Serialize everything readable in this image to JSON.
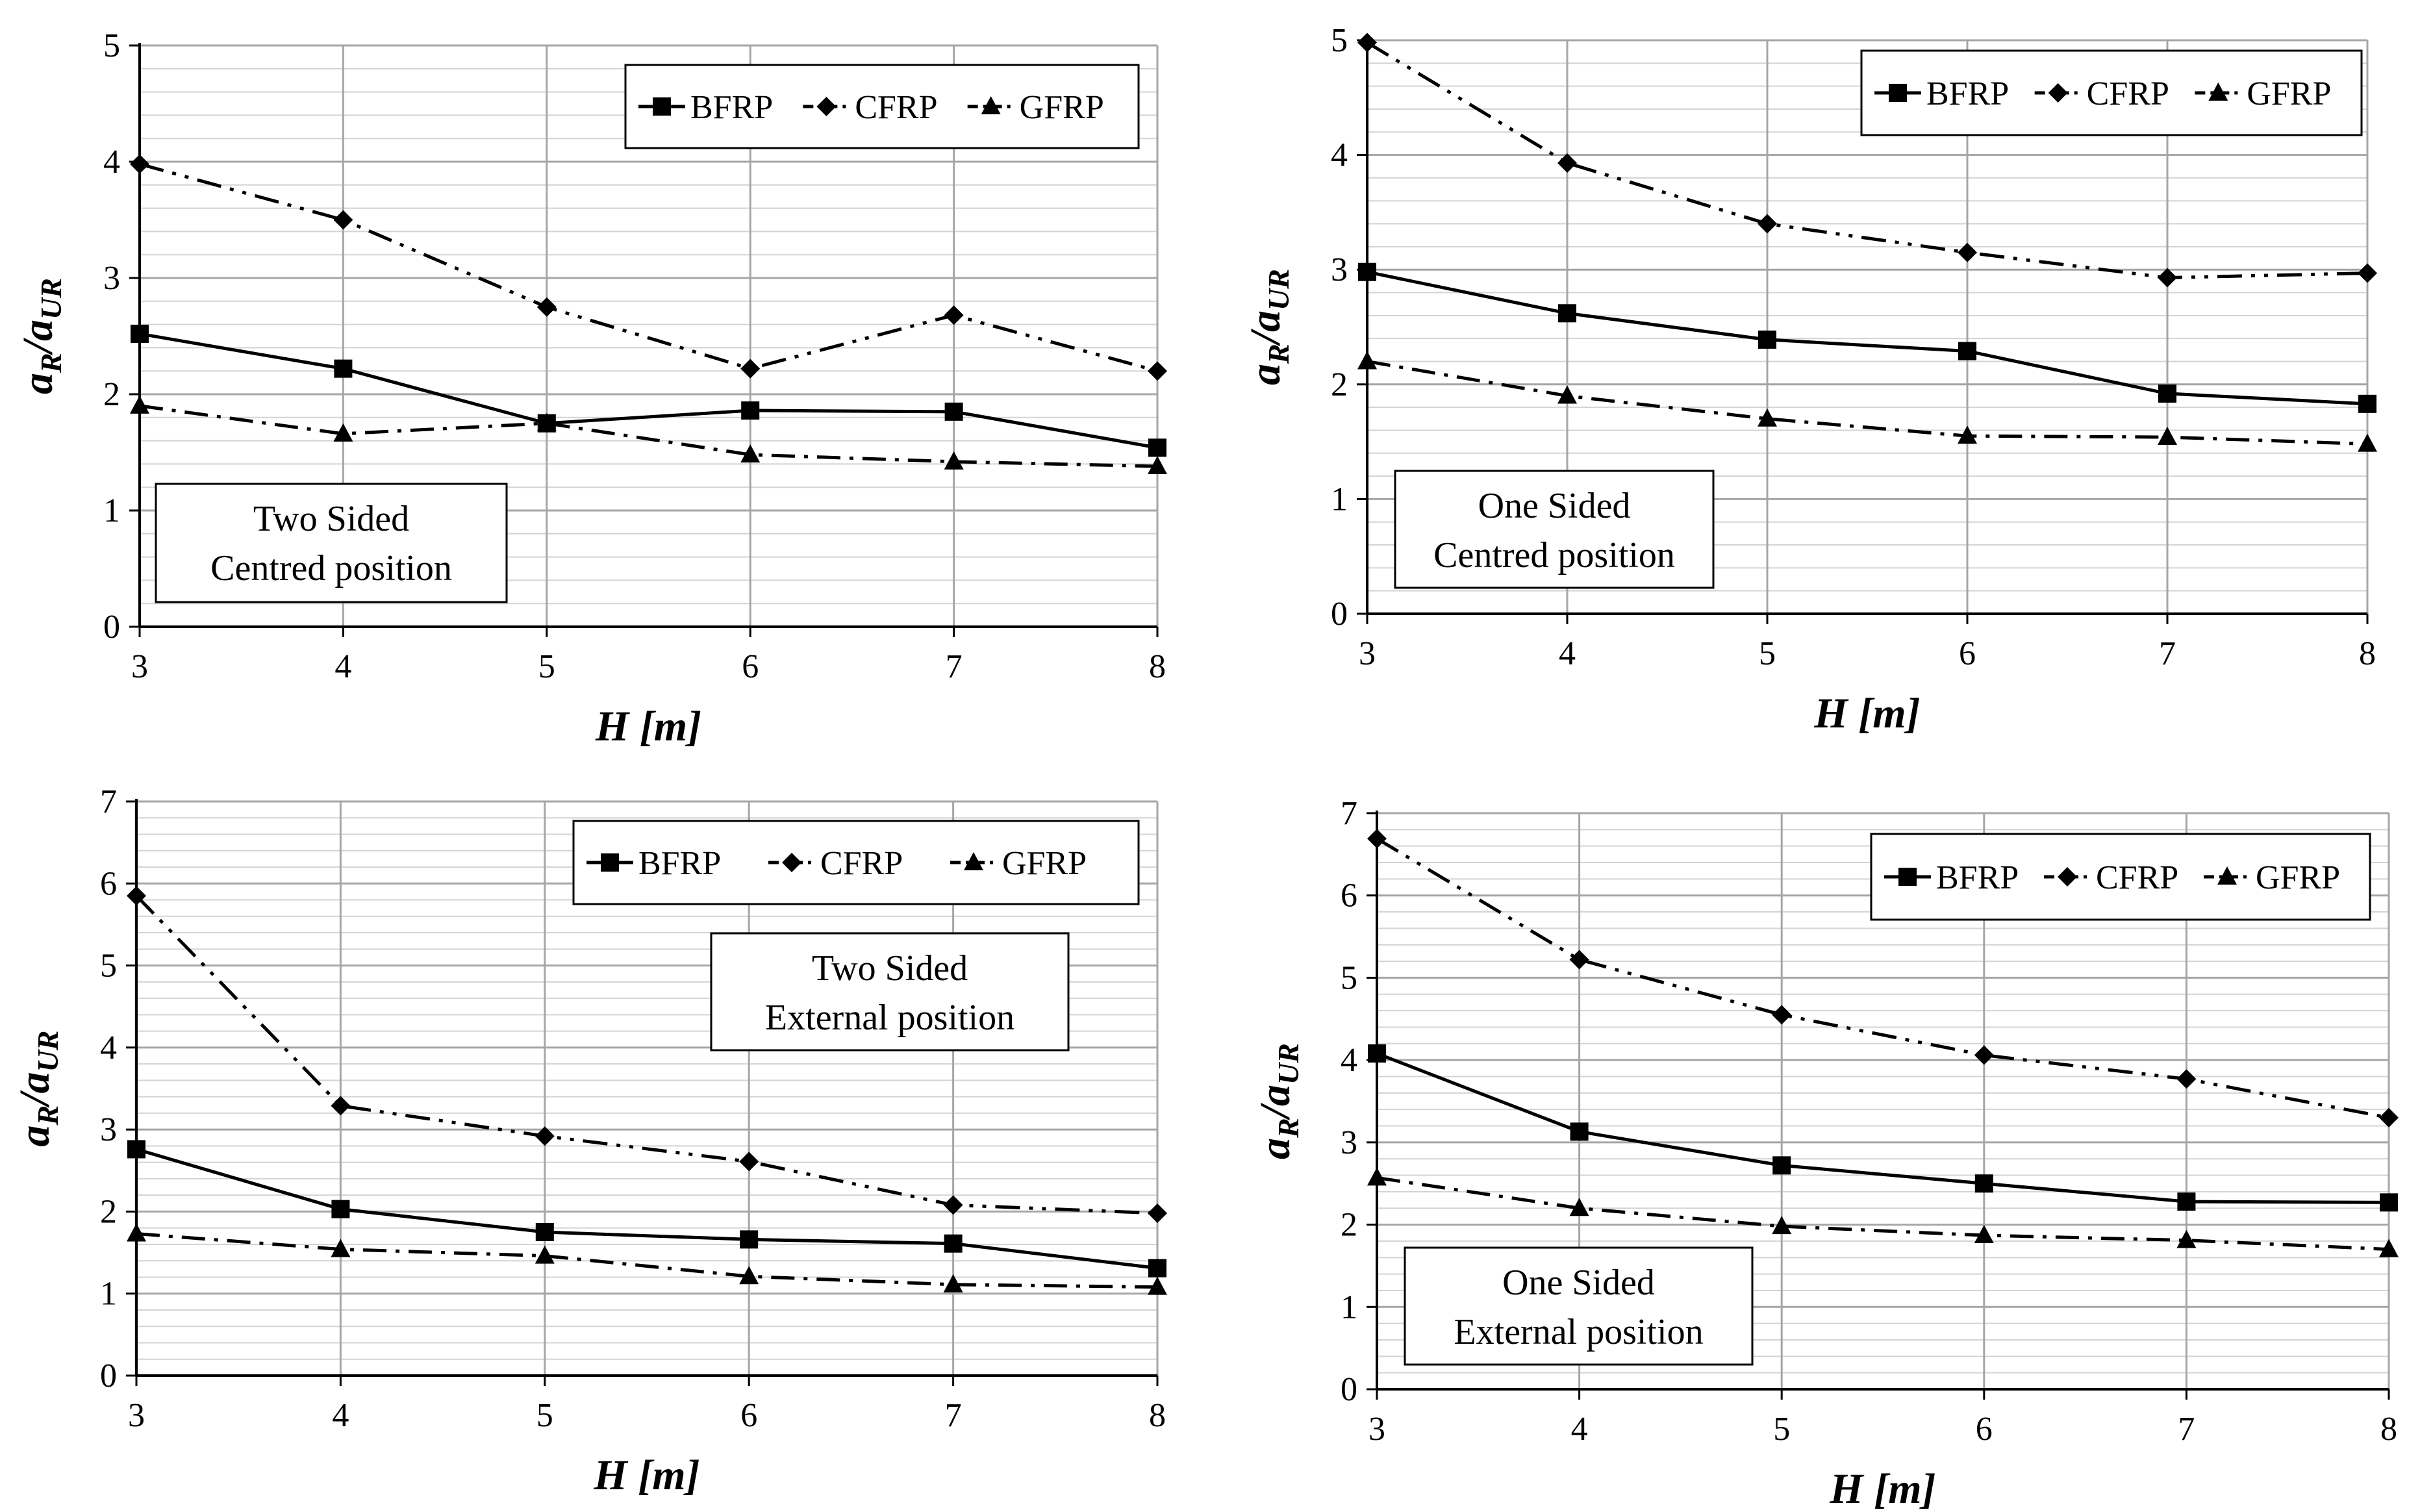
{
  "colors": {
    "line": "#000000",
    "grid": "#a6a6a6",
    "fine_grid": "#d3d3d3",
    "background": "#ffffff"
  },
  "chart_data": [
    {
      "type": "line",
      "id": "c1",
      "annotation": [
        "Two Sided",
        "Centred position"
      ],
      "annotation_placement": "bottom-left",
      "legend_placement": "top-right",
      "x": [
        3,
        4,
        5,
        6,
        7,
        8
      ],
      "xlabel_main": "H",
      "xlabel_unit": "m",
      "ylabel_main": "a",
      "ylabel_sub_num": "R",
      "ylabel_sub_den": "UR",
      "ylim": [
        0,
        5
      ],
      "yticks": [
        0,
        1,
        2,
        3,
        4,
        5
      ],
      "grid": true,
      "series": [
        {
          "name": "BFRP",
          "marker": "square",
          "dash": "solid",
          "values": [
            2.52,
            2.22,
            1.75,
            1.86,
            1.85,
            1.54
          ]
        },
        {
          "name": "CFRP",
          "marker": "diamond",
          "dash": "dashdotdot",
          "values": [
            3.98,
            3.5,
            2.75,
            2.22,
            2.68,
            2.2
          ]
        },
        {
          "name": "GFRP",
          "marker": "triangle",
          "dash": "dashdot",
          "values": [
            1.9,
            1.66,
            1.75,
            1.48,
            1.42,
            1.38
          ]
        }
      ]
    },
    {
      "type": "line",
      "id": "c2",
      "annotation": [
        "One Sided",
        "Centred position"
      ],
      "annotation_placement": "bottom-left",
      "legend_placement": "top-right",
      "x": [
        3,
        4,
        5,
        6,
        7,
        8
      ],
      "xlabel_main": "H",
      "xlabel_unit": "m",
      "ylabel_main": "a",
      "ylabel_sub_num": "R",
      "ylabel_sub_den": "UR",
      "ylim": [
        0,
        5
      ],
      "yticks": [
        0,
        1,
        2,
        3,
        4,
        5
      ],
      "grid": true,
      "series": [
        {
          "name": "BFRP",
          "marker": "square",
          "dash": "solid",
          "values": [
            2.98,
            2.62,
            2.39,
            2.29,
            1.92,
            1.83
          ]
        },
        {
          "name": "CFRP",
          "marker": "diamond",
          "dash": "dashdotdot",
          "values": [
            4.98,
            3.93,
            3.4,
            3.15,
            2.93,
            2.97
          ]
        },
        {
          "name": "GFRP",
          "marker": "triangle",
          "dash": "dashdot",
          "values": [
            2.2,
            1.9,
            1.7,
            1.55,
            1.54,
            1.48
          ]
        }
      ]
    },
    {
      "type": "line",
      "id": "c3",
      "annotation": [
        "Two Sided",
        "External position"
      ],
      "annotation_placement": "top-center",
      "legend_placement": "top-right",
      "x": [
        3,
        4,
        5,
        6,
        7,
        8
      ],
      "xlabel_main": "H",
      "xlabel_unit": "m",
      "ylabel_main": "a",
      "ylabel_sub_num": "R",
      "ylabel_sub_den": "UR",
      "ylim": [
        0,
        7
      ],
      "yticks": [
        0,
        1,
        2,
        3,
        4,
        5,
        6,
        7
      ],
      "grid": true,
      "series": [
        {
          "name": "BFRP",
          "marker": "square",
          "dash": "solid",
          "values": [
            2.76,
            2.03,
            1.75,
            1.66,
            1.61,
            1.31
          ]
        },
        {
          "name": "CFRP",
          "marker": "diamond",
          "dash": "dashdotdot",
          "values": [
            5.85,
            3.29,
            2.92,
            2.61,
            2.08,
            1.98
          ]
        },
        {
          "name": "GFRP",
          "marker": "triangle",
          "dash": "dashdot",
          "values": [
            1.73,
            1.54,
            1.46,
            1.21,
            1.11,
            1.08
          ]
        }
      ]
    },
    {
      "type": "line",
      "id": "c4",
      "annotation": [
        "One Sided",
        "External position"
      ],
      "annotation_placement": "bottom-left",
      "legend_placement": "top-right",
      "x": [
        3,
        4,
        5,
        6,
        7,
        8
      ],
      "xlabel_main": "H",
      "xlabel_unit": "m",
      "ylabel_main": "a",
      "ylabel_sub_num": "R",
      "ylabel_sub_den": "UR",
      "ylim": [
        0,
        7
      ],
      "yticks": [
        0,
        1,
        2,
        3,
        4,
        5,
        6,
        7
      ],
      "grid": true,
      "series": [
        {
          "name": "BFRP",
          "marker": "square",
          "dash": "solid",
          "values": [
            4.08,
            3.13,
            2.72,
            2.5,
            2.28,
            2.27
          ]
        },
        {
          "name": "CFRP",
          "marker": "diamond",
          "dash": "dashdotdot",
          "values": [
            6.69,
            5.22,
            4.55,
            4.06,
            3.77,
            3.3
          ]
        },
        {
          "name": "GFRP",
          "marker": "triangle",
          "dash": "dashdot",
          "values": [
            2.57,
            2.2,
            1.98,
            1.87,
            1.81,
            1.7
          ]
        }
      ]
    }
  ]
}
